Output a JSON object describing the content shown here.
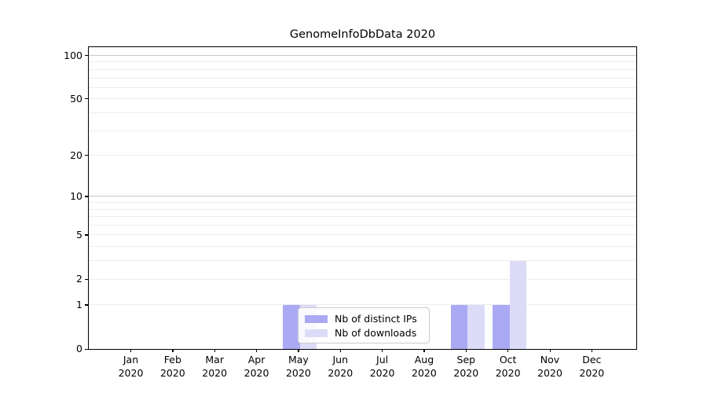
{
  "chart_data": {
    "type": "bar",
    "title": "GenomeInfoDbData 2020",
    "year": "2020",
    "months": [
      "Jan",
      "Feb",
      "Mar",
      "Apr",
      "May",
      "Jun",
      "Jul",
      "Aug",
      "Sep",
      "Oct",
      "Nov",
      "Dec"
    ],
    "series": [
      {
        "name": "Nb of distinct IPs",
        "color": "#aaaaf4",
        "values": [
          0,
          0,
          0,
          0,
          1,
          0,
          0,
          0,
          1,
          1,
          0,
          0
        ]
      },
      {
        "name": "Nb of downloads",
        "color": "#dcdcf8",
        "values": [
          0,
          0,
          0,
          0,
          1,
          0,
          0,
          0,
          1,
          3,
          0,
          0
        ]
      }
    ],
    "xlabel": "",
    "ylabel": "",
    "y_scale": "log10(1+x)",
    "y_ticks": [
      0,
      1,
      2,
      5,
      10,
      20,
      50,
      100
    ],
    "ylim": [
      0,
      114
    ],
    "grid": {
      "on": true,
      "minor_values": [
        1,
        2,
        3,
        4,
        5,
        6,
        7,
        8,
        9,
        20,
        30,
        40,
        50,
        60,
        70,
        80,
        90
      ],
      "major_values": [
        10,
        100
      ],
      "minor_color": "#ededed",
      "major_color": "#c9c9c9"
    },
    "legend": {
      "position": "inside-bottom-center"
    }
  },
  "colors": {
    "spine": "#000000",
    "text": "#000000",
    "background": "#ffffff",
    "legend_border": "#cccccc"
  }
}
